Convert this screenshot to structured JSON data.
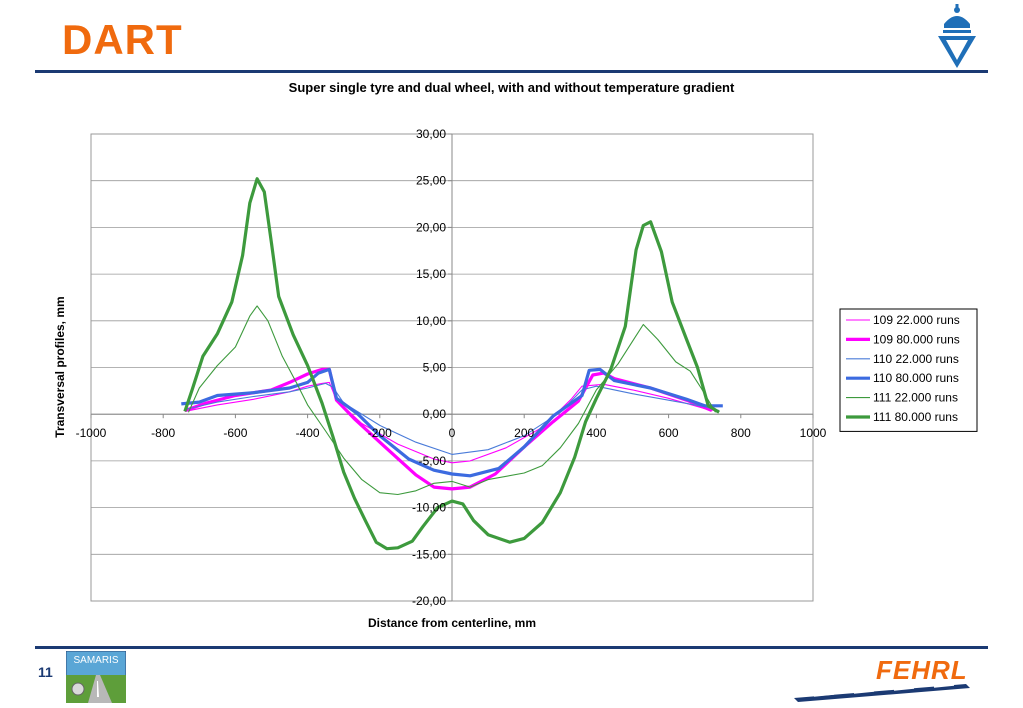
{
  "slide": {
    "title": "DART",
    "number": "11",
    "samaris_label": "SAMARIS",
    "fehrl_label": "FEHRL"
  },
  "colors": {
    "accent": "#f06a0e",
    "rule": "#1b3a73"
  },
  "chart_data": {
    "type": "line",
    "title": "Super single tyre and dual wheel, with and without temperature gradient",
    "xlabel": "Distance from centerline, mm",
    "ylabel": "Transversal profiles, mm",
    "xlim": [
      -1000,
      1000
    ],
    "ylim": [
      -20,
      30
    ],
    "x_ticks": [
      -1000,
      -800,
      -600,
      -400,
      -200,
      0,
      200,
      400,
      600,
      800,
      1000
    ],
    "x_tick_labels": [
      "-1000",
      "-800",
      "-600",
      "-400",
      "-200",
      "0",
      "200",
      "400",
      "600",
      "800",
      "1000"
    ],
    "y_ticks": [
      30,
      25,
      20,
      15,
      10,
      5,
      0,
      -5,
      -10,
      -15,
      -20
    ],
    "y_tick_labels": [
      "30,00",
      "25,00",
      "20,00",
      "15,00",
      "10,00",
      "5,00",
      "0,00",
      "-5,00",
      "-10,00",
      "-15,00",
      "-20,00"
    ],
    "grid": "horizontal",
    "legend_position": "right",
    "series": [
      {
        "name": "109   22.000 runs",
        "color": "#ff00ff",
        "width": "thin",
        "points": [
          [
            -740,
            0.3
          ],
          [
            -650,
            1.0
          ],
          [
            -550,
            1.6
          ],
          [
            -450,
            2.4
          ],
          [
            -400,
            3.0
          ],
          [
            -360,
            3.3
          ],
          [
            -340,
            3.4
          ],
          [
            -320,
            1.5
          ],
          [
            -250,
            -1.0
          ],
          [
            -150,
            -3.2
          ],
          [
            -50,
            -4.8
          ],
          [
            0,
            -5.2
          ],
          [
            50,
            -5.0
          ],
          [
            150,
            -3.6
          ],
          [
            250,
            -1.4
          ],
          [
            330,
            1.6
          ],
          [
            360,
            3.0
          ],
          [
            420,
            3.2
          ],
          [
            500,
            2.6
          ],
          [
            600,
            1.7
          ],
          [
            700,
            0.6
          ],
          [
            740,
            0.3
          ]
        ]
      },
      {
        "name": "109   80.000 runs",
        "color": "#ff00ff",
        "width": "thick",
        "points": [
          [
            -740,
            0.4
          ],
          [
            -680,
            1.2
          ],
          [
            -600,
            2.0
          ],
          [
            -500,
            2.6
          ],
          [
            -450,
            3.4
          ],
          [
            -400,
            4.3
          ],
          [
            -360,
            4.8
          ],
          [
            -340,
            4.8
          ],
          [
            -320,
            1.5
          ],
          [
            -270,
            -0.5
          ],
          [
            -200,
            -3.0
          ],
          [
            -100,
            -6.5
          ],
          [
            -50,
            -7.8
          ],
          [
            0,
            -8.0
          ],
          [
            50,
            -7.8
          ],
          [
            120,
            -6.4
          ],
          [
            200,
            -3.5
          ],
          [
            280,
            -0.8
          ],
          [
            350,
            1.4
          ],
          [
            390,
            4.2
          ],
          [
            420,
            4.4
          ],
          [
            450,
            3.8
          ],
          [
            550,
            2.8
          ],
          [
            650,
            1.5
          ],
          [
            720,
            0.4
          ]
        ]
      },
      {
        "name": "110   22.000 runs",
        "color": "#4a7bd9",
        "width": "thin",
        "points": [
          [
            -740,
            0.5
          ],
          [
            -650,
            1.3
          ],
          [
            -550,
            1.9
          ],
          [
            -450,
            2.4
          ],
          [
            -400,
            2.8
          ],
          [
            -350,
            3.3
          ],
          [
            -330,
            2.9
          ],
          [
            -300,
            1.2
          ],
          [
            -200,
            -1.2
          ],
          [
            -100,
            -3.0
          ],
          [
            0,
            -4.3
          ],
          [
            100,
            -3.8
          ],
          [
            200,
            -2.3
          ],
          [
            300,
            0.2
          ],
          [
            360,
            2.6
          ],
          [
            400,
            3.0
          ],
          [
            500,
            2.2
          ],
          [
            600,
            1.5
          ],
          [
            700,
            0.8
          ],
          [
            740,
            0.4
          ]
        ]
      },
      {
        "name": "110   80.000 runs",
        "color": "#3c6be0",
        "width": "thick",
        "points": [
          [
            -750,
            1.1
          ],
          [
            -700,
            1.3
          ],
          [
            -650,
            2.0
          ],
          [
            -550,
            2.3
          ],
          [
            -450,
            2.8
          ],
          [
            -400,
            3.4
          ],
          [
            -370,
            4.4
          ],
          [
            -340,
            4.8
          ],
          [
            -320,
            1.7
          ],
          [
            -260,
            0
          ],
          [
            -200,
            -2.3
          ],
          [
            -120,
            -4.8
          ],
          [
            -50,
            -6.0
          ],
          [
            0,
            -6.4
          ],
          [
            50,
            -6.6
          ],
          [
            130,
            -5.8
          ],
          [
            200,
            -3.5
          ],
          [
            280,
            -0.2
          ],
          [
            360,
            2.0
          ],
          [
            380,
            4.7
          ],
          [
            410,
            4.8
          ],
          [
            450,
            3.6
          ],
          [
            550,
            2.8
          ],
          [
            650,
            1.6
          ],
          [
            700,
            0.9
          ],
          [
            750,
            0.9
          ]
        ]
      },
      {
        "name": "111   22.000 runs",
        "color": "#3d9a3d",
        "width": "thin",
        "points": [
          [
            -730,
            0.2
          ],
          [
            -700,
            2.8
          ],
          [
            -650,
            5.2
          ],
          [
            -600,
            7.2
          ],
          [
            -560,
            10.5
          ],
          [
            -540,
            11.6
          ],
          [
            -510,
            10.0
          ],
          [
            -470,
            6.2
          ],
          [
            -430,
            3.3
          ],
          [
            -400,
            1.0
          ],
          [
            -350,
            -1.8
          ],
          [
            -300,
            -4.7
          ],
          [
            -250,
            -7.0
          ],
          [
            -200,
            -8.4
          ],
          [
            -150,
            -8.6
          ],
          [
            -100,
            -8.2
          ],
          [
            -50,
            -7.4
          ],
          [
            0,
            -7.2
          ],
          [
            50,
            -7.8
          ],
          [
            100,
            -7.0
          ],
          [
            200,
            -6.3
          ],
          [
            250,
            -5.5
          ],
          [
            300,
            -3.6
          ],
          [
            350,
            -1.0
          ],
          [
            400,
            2.6
          ],
          [
            460,
            5.4
          ],
          [
            510,
            8.4
          ],
          [
            530,
            9.6
          ],
          [
            570,
            8.0
          ],
          [
            620,
            5.6
          ],
          [
            660,
            4.6
          ],
          [
            690,
            2.8
          ],
          [
            730,
            0.2
          ]
        ]
      },
      {
        "name": "111   80.000 runs",
        "color": "#3d9a3d",
        "width": "thick",
        "points": [
          [
            -740,
            0.3
          ],
          [
            -720,
            2.6
          ],
          [
            -690,
            6.2
          ],
          [
            -650,
            8.6
          ],
          [
            -610,
            12.0
          ],
          [
            -580,
            17.0
          ],
          [
            -560,
            22.6
          ],
          [
            -540,
            25.2
          ],
          [
            -520,
            23.8
          ],
          [
            -500,
            18.3
          ],
          [
            -480,
            12.6
          ],
          [
            -440,
            8.5
          ],
          [
            -400,
            5.2
          ],
          [
            -360,
            1.2
          ],
          [
            -330,
            -2.4
          ],
          [
            -300,
            -6.2
          ],
          [
            -270,
            -9.0
          ],
          [
            -240,
            -11.4
          ],
          [
            -210,
            -13.7
          ],
          [
            -180,
            -14.4
          ],
          [
            -150,
            -14.3
          ],
          [
            -110,
            -13.6
          ],
          [
            -80,
            -12.0
          ],
          [
            -40,
            -10.0
          ],
          [
            0,
            -9.3
          ],
          [
            30,
            -9.6
          ],
          [
            60,
            -11.4
          ],
          [
            100,
            -12.9
          ],
          [
            160,
            -13.7
          ],
          [
            200,
            -13.3
          ],
          [
            250,
            -11.6
          ],
          [
            300,
            -8.4
          ],
          [
            340,
            -4.6
          ],
          [
            370,
            -0.8
          ],
          [
            400,
            1.7
          ],
          [
            440,
            4.8
          ],
          [
            480,
            9.4
          ],
          [
            510,
            17.6
          ],
          [
            530,
            20.2
          ],
          [
            550,
            20.6
          ],
          [
            580,
            17.4
          ],
          [
            610,
            12.0
          ],
          [
            650,
            8.0
          ],
          [
            680,
            5.0
          ],
          [
            710,
            0.9
          ],
          [
            740,
            0.2
          ]
        ]
      }
    ]
  }
}
